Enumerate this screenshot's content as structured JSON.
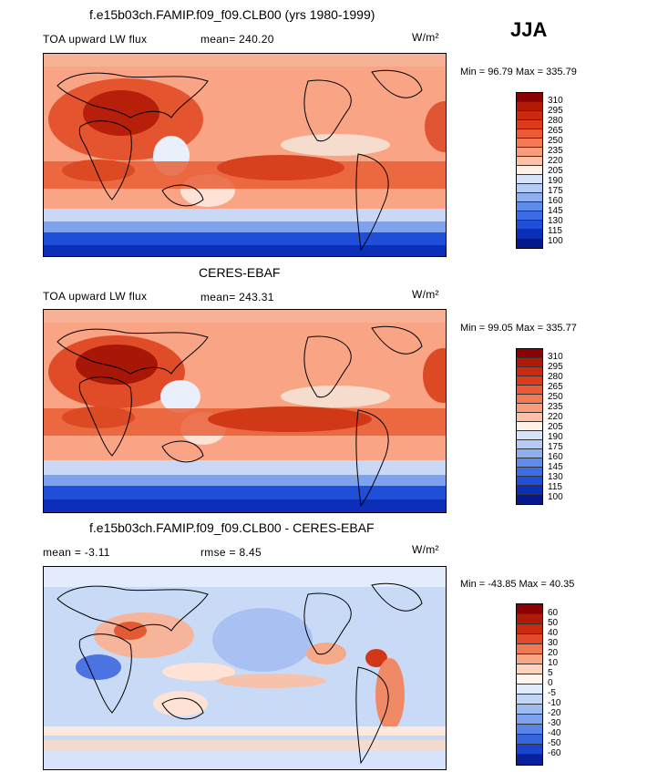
{
  "season": "JJA",
  "units_label": "W/m²",
  "panels": [
    {
      "title": "f.e15b03ch.FAMIP.f09_f09.CLB00 (yrs 1980-1999)",
      "left_label": "TOA upward LW flux",
      "stat_label": "mean=  240.20",
      "minmax": "Min =  96.79 Max = 335.79",
      "colorbar": {
        "colors": [
          "#8b0000",
          "#b01a06",
          "#cc2a10",
          "#dc3b1c",
          "#ea5a36",
          "#f47a55",
          "#f99c7c",
          "#fcc1a6",
          "#fff0e8",
          "#d7e3fa",
          "#b4cbf5",
          "#8faff0",
          "#5f8cea",
          "#3d6de4",
          "#1f4fd8",
          "#0b2fb8",
          "#06198c"
        ],
        "labels": [
          "310",
          "295",
          "280",
          "265",
          "250",
          "235",
          "220",
          "205",
          "190",
          "175",
          "160",
          "145",
          "130",
          "115",
          "100"
        ]
      }
    },
    {
      "title": "CERES-EBAF",
      "left_label": "TOA upward LW flux",
      "stat_label": "mean=  243.31",
      "minmax": "Min =  99.05 Max = 335.77",
      "colorbar": {
        "colors": [
          "#8b0000",
          "#b01a06",
          "#cc2a10",
          "#dc3b1c",
          "#ea5a36",
          "#f47a55",
          "#f99c7c",
          "#fcc1a6",
          "#fff0e8",
          "#d7e3fa",
          "#b4cbf5",
          "#8faff0",
          "#5f8cea",
          "#3d6de4",
          "#1f4fd8",
          "#0b2fb8",
          "#06198c"
        ],
        "labels": [
          "310",
          "295",
          "280",
          "265",
          "250",
          "235",
          "220",
          "205",
          "190",
          "175",
          "160",
          "145",
          "130",
          "115",
          "100"
        ]
      }
    },
    {
      "title": "f.e15b03ch.FAMIP.f09_f09.CLB00 - CERES-EBAF",
      "left_label": "mean =   -3.11",
      "stat_label": "rmse =    8.45",
      "minmax": "Min = -43.85 Max =  40.35",
      "colorbar": {
        "colors": [
          "#8b0000",
          "#b01a06",
          "#cc2a10",
          "#e2482a",
          "#f07a55",
          "#f9a684",
          "#fdd2bd",
          "#fff4ee",
          "#e0ebfb",
          "#c2d6f7",
          "#9fbcf2",
          "#7ea2ee",
          "#5a84e8",
          "#3664de",
          "#1a45cc",
          "#08209e"
        ],
        "labels": [
          "60",
          "50",
          "40",
          "30",
          "20",
          "10",
          "5",
          "0",
          "-5",
          "-10",
          "-20",
          "-30",
          "-40",
          "-50",
          "-60"
        ]
      }
    }
  ]
}
